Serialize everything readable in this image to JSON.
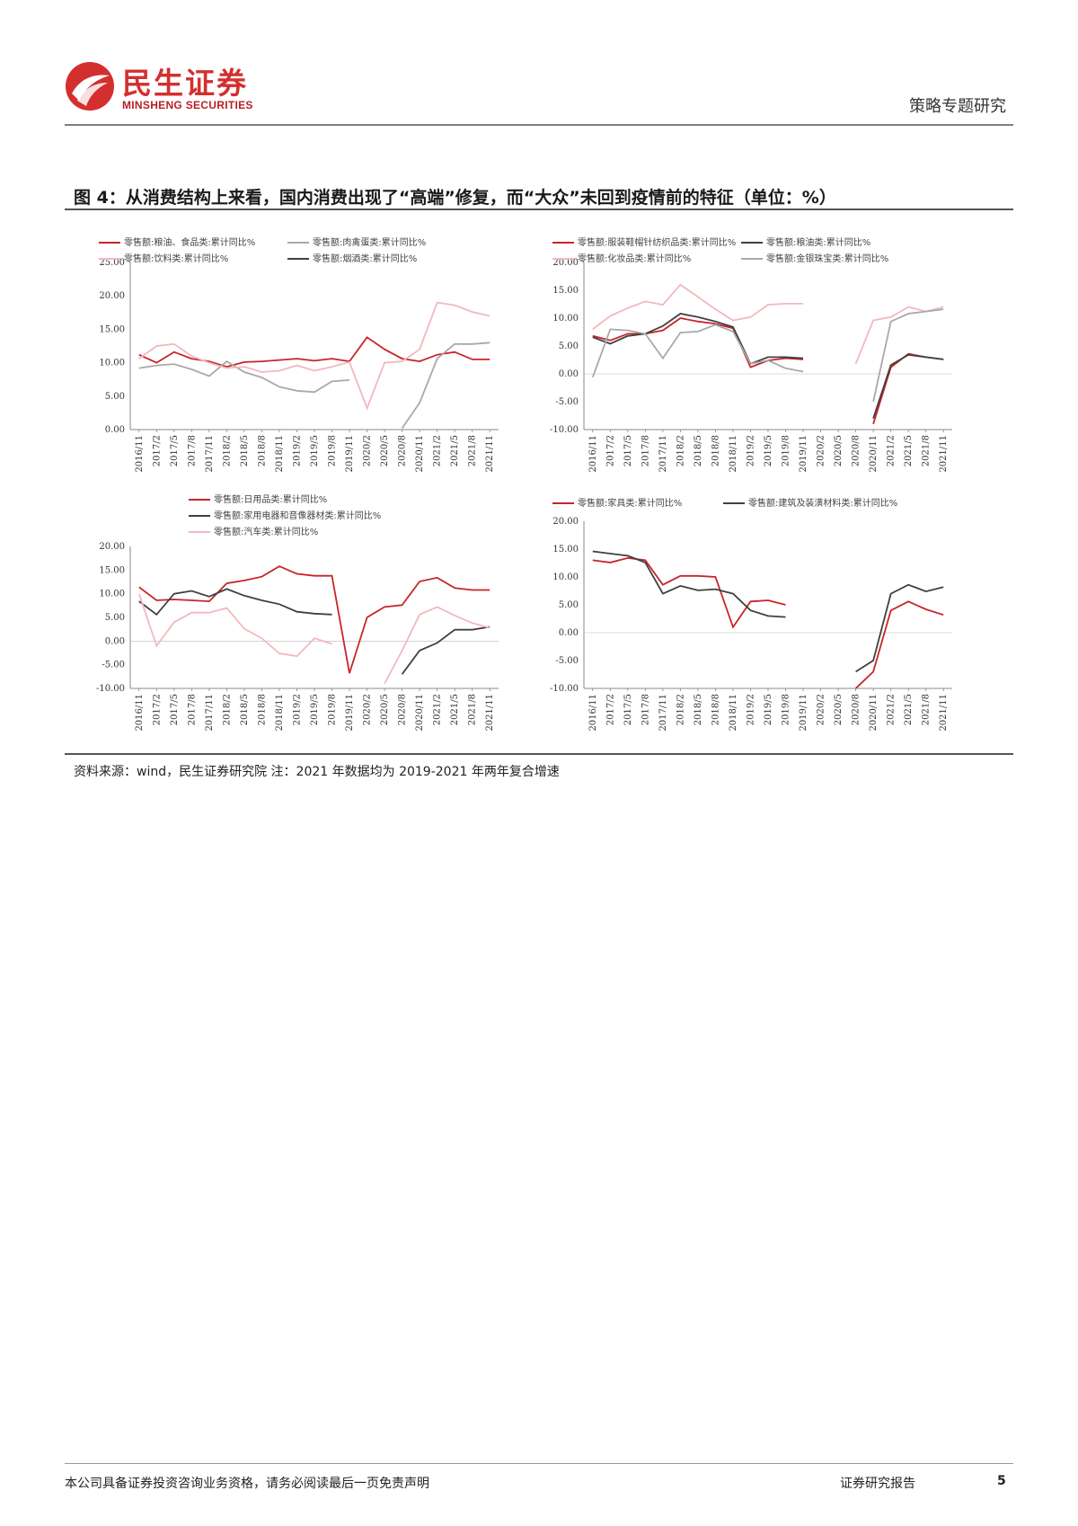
{
  "header": {
    "brand_cn": "民生证券",
    "brand_en": "MINSHENG SECURITIES",
    "report_type": "策略专题研究"
  },
  "figure": {
    "title": "图 4：从消费结构上来看，国内消费出现了“高端”修复，而“大众”未回到疫情前的特征（单位：%）",
    "source": "资料来源：wind，民生证券研究院 注：2021 年数据均为 2019-2021 年两年复合增速"
  },
  "colors": {
    "red": "#c8242a",
    "dark": "#404040",
    "pink": "#f2b8bd",
    "gray": "#a9a9a9"
  },
  "chart_data": [
    {
      "type": "line",
      "ylim": [
        0,
        25
      ],
      "yticks": [
        "25.00",
        "20.00",
        "15.00",
        "10.00",
        "5.00",
        "0.00"
      ],
      "ytick_values": [
        25,
        20,
        15,
        10,
        5,
        0
      ],
      "xticks": [
        "2016/11",
        "2017/2",
        "2017/5",
        "2017/8",
        "2017/11",
        "2018/2",
        "2018/5",
        "2018/8",
        "2018/11",
        "2019/2",
        "2019/5",
        "2019/8",
        "2019/11",
        "2020/2",
        "2020/5",
        "2020/8",
        "2020/11",
        "2021/2",
        "2021/5",
        "2021/8",
        "2021/11"
      ],
      "series": [
        {
          "name": "零售额:粮油、食品类:累计同比%",
          "color": "red",
          "values": [
            11.2,
            10.0,
            11.6,
            10.6,
            10.2,
            9.4,
            10.1,
            10.2,
            10.4,
            10.6,
            10.3,
            10.6,
            10.2,
            13.8,
            12.0,
            10.6,
            10.2,
            11.2,
            11.6,
            10.5,
            10.5
          ]
        },
        {
          "name": "零售额:肉禽蛋类:累计同比%",
          "color": "gray",
          "values": [
            9.2,
            9.6,
            9.8,
            9.0,
            8.0,
            10.2,
            8.6,
            7.8,
            6.4,
            5.8,
            5.6,
            7.2,
            7.4,
            null,
            null,
            0.2,
            4.0,
            10.6,
            12.8,
            12.8,
            13.0
          ]
        },
        {
          "name": "零售额:饮料类:累计同比%",
          "color": "pink",
          "values": [
            10.6,
            12.5,
            12.8,
            11.0,
            10.0,
            9.2,
            9.4,
            8.6,
            8.8,
            9.6,
            8.8,
            9.4,
            10.1,
            3.2,
            10.0,
            10.2,
            12.0,
            19.0,
            18.6,
            17.6,
            17.0
          ]
        },
        {
          "name": "零售额:烟酒类:累计同比%",
          "color": "dark",
          "values": [
            null,
            null,
            null,
            null,
            null,
            null,
            null,
            null,
            null,
            null,
            null,
            null,
            null,
            null,
            null,
            null,
            null,
            null,
            null,
            null,
            null
          ]
        }
      ]
    },
    {
      "type": "line",
      "ylim": [
        -10,
        20
      ],
      "yticks": [
        "20.00",
        "15.00",
        "10.00",
        "5.00",
        "0.00",
        "-5.00",
        "-10.00"
      ],
      "ytick_values": [
        20,
        15,
        10,
        5,
        0,
        -5,
        -10
      ],
      "xticks": [
        "2016/11",
        "2017/2",
        "2017/5",
        "2017/8",
        "2017/11",
        "2018/2",
        "2018/5",
        "2018/8",
        "2018/11",
        "2019/2",
        "2019/5",
        "2019/8",
        "2019/11",
        "2020/2",
        "2020/5",
        "2020/8",
        "2020/11",
        "2021/2",
        "2021/5",
        "2021/8",
        "2021/11"
      ],
      "series": [
        {
          "name": "零售额:服装鞋帽针纺织品类:累计同比%",
          "color": "red",
          "values": [
            6.8,
            6.0,
            7.2,
            7.2,
            7.8,
            10.0,
            9.4,
            9.0,
            8.2,
            1.2,
            2.4,
            2.8,
            2.6,
            null,
            null,
            null,
            -9.0,
            1.2,
            3.6,
            3.0,
            2.6
          ]
        },
        {
          "name": "零售额:粮油类:累计同比%",
          "color": "dark",
          "values": [
            6.6,
            5.4,
            6.8,
            7.2,
            8.6,
            10.8,
            10.2,
            9.4,
            8.4,
            1.8,
            3.0,
            3.0,
            2.8,
            null,
            null,
            null,
            -8.0,
            1.6,
            3.4,
            3.0,
            2.6
          ]
        },
        {
          "name": "零售额:化妆品类:累计同比%",
          "color": "pink",
          "values": [
            8.0,
            10.4,
            11.8,
            13.0,
            12.4,
            16.0,
            13.8,
            11.6,
            9.6,
            10.2,
            12.4,
            12.6,
            12.6,
            null,
            null,
            1.8,
            9.6,
            10.2,
            12.0,
            11.2,
            12.0
          ]
        },
        {
          "name": "零售额:金银珠宝类:累计同比%",
          "color": "gray",
          "values": [
            -0.6,
            8.0,
            7.8,
            7.2,
            2.8,
            7.4,
            7.6,
            8.8,
            7.6,
            1.8,
            2.4,
            1.0,
            0.4,
            null,
            null,
            null,
            -5.0,
            9.4,
            10.8,
            11.2,
            11.6
          ]
        }
      ]
    },
    {
      "type": "line",
      "ylim": [
        -10,
        20
      ],
      "yticks": [
        "20.00",
        "15.00",
        "10.00",
        "5.00",
        "0.00",
        "-5.00",
        "-10.00"
      ],
      "ytick_values": [
        20,
        15,
        10,
        5,
        0,
        -5,
        -10
      ],
      "xticks": [
        "2016/11",
        "2017/2",
        "2017/5",
        "2017/8",
        "2017/11",
        "2018/2",
        "2018/5",
        "2018/8",
        "2018/11",
        "2019/2",
        "2019/5",
        "2019/8",
        "2019/11",
        "2020/2",
        "2020/5",
        "2020/8",
        "2020/11",
        "2021/2",
        "2021/5",
        "2021/8",
        "2021/11"
      ],
      "series": [
        {
          "name": "零售额:日用品类:累计同比%",
          "color": "red",
          "values": [
            11.4,
            8.6,
            8.8,
            8.6,
            8.4,
            12.2,
            12.8,
            13.6,
            15.8,
            14.2,
            13.8,
            13.8,
            -6.8,
            5.0,
            7.2,
            7.6,
            12.6,
            13.4,
            11.2,
            10.8,
            10.8
          ]
        },
        {
          "name": "零售额:家用电器和音像器材类:累计同比%",
          "color": "dark",
          "values": [
            8.4,
            5.6,
            10.0,
            10.6,
            9.4,
            11.0,
            9.6,
            8.6,
            7.8,
            6.2,
            5.8,
            5.6,
            null,
            null,
            null,
            -7.0,
            -2.0,
            -0.4,
            2.4,
            2.4,
            3.0
          ]
        },
        {
          "name": "零售额:汽车类:累计同比%",
          "color": "pink",
          "values": [
            10.0,
            -1.0,
            4.0,
            6.0,
            6.0,
            7.0,
            2.6,
            0.6,
            -2.6,
            -3.2,
            0.6,
            -0.6,
            null,
            null,
            -9.0,
            -2.0,
            5.6,
            7.2,
            5.4,
            3.8,
            2.8
          ]
        }
      ]
    },
    {
      "type": "line",
      "ylim": [
        -10,
        20
      ],
      "yticks": [
        "20.00",
        "15.00",
        "10.00",
        "5.00",
        "0.00",
        "-5.00",
        "-10.00"
      ],
      "ytick_values": [
        20,
        15,
        10,
        5,
        0,
        -5,
        -10
      ],
      "xticks": [
        "2016/11",
        "2017/2",
        "2017/5",
        "2017/8",
        "2017/11",
        "2018/2",
        "2018/5",
        "2018/8",
        "2018/11",
        "2019/2",
        "2019/5",
        "2019/8",
        "2019/11",
        "2020/2",
        "2020/5",
        "2020/8",
        "2020/11",
        "2021/2",
        "2021/5",
        "2021/8",
        "2021/11"
      ],
      "series": [
        {
          "name": "零售额:家具类:累计同比%",
          "color": "red",
          "values": [
            13.0,
            12.6,
            13.4,
            13.0,
            8.6,
            10.2,
            10.2,
            10.0,
            1.0,
            5.6,
            5.8,
            5.0,
            null,
            null,
            null,
            -10.0,
            -7.0,
            4.0,
            5.6,
            4.2,
            3.2
          ]
        },
        {
          "name": "零售额:建筑及装潢材料类:累计同比%",
          "color": "dark",
          "values": [
            14.6,
            14.2,
            13.8,
            12.6,
            7.0,
            8.4,
            7.6,
            7.8,
            7.0,
            4.0,
            3.0,
            2.8,
            null,
            null,
            null,
            -7.0,
            -5.0,
            7.0,
            8.6,
            7.4,
            8.2
          ]
        }
      ]
    }
  ],
  "footer": {
    "disclaimer": "本公司具备证券投资咨询业务资格，请务必阅读最后一页免责声明",
    "report_label": "证券研究报告",
    "page": "5"
  }
}
